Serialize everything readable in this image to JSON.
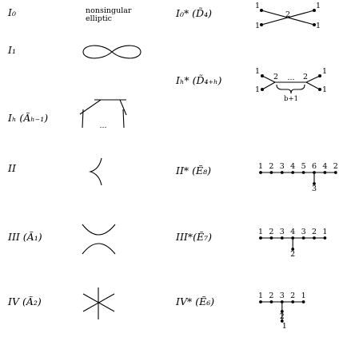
{
  "left": {
    "i0": "I₀",
    "i1": "I₁",
    "ib": "Iₕ  (Ãₕ₋₁)",
    "ii": "II",
    "iii": "III (Ã₁)",
    "iv": "IV  (Ã₂)"
  },
  "nonsingular": {
    "line1": "nonsingular",
    "line2": "elliptic"
  },
  "cycle_dots": "...",
  "right": {
    "i0s": "I₀*  (D̃₄)",
    "ibs": "Iₕ*  (D̃₄₊ₕ)",
    "iis": "II*  (Ẽ₈)",
    "iiis": "III*(Ẽ₇)",
    "ivs": "IV*  (Ẽ₆)"
  },
  "d4": {
    "ends": [
      "1",
      "1",
      "1",
      "1"
    ],
    "center": "2"
  },
  "d4b": {
    "ends": [
      "1",
      "1",
      "1",
      "1"
    ],
    "left": "2",
    "right": "2",
    "dots": "...",
    "brace_label": "b+1"
  },
  "e8": {
    "chain": [
      "1",
      "2",
      "3",
      "4",
      "5",
      "6",
      "4",
      "2"
    ],
    "branch": [
      "3"
    ]
  },
  "e7": {
    "chain": [
      "1",
      "2",
      "3",
      "4",
      "3",
      "2",
      "1"
    ],
    "branch": [
      "2"
    ]
  },
  "e6": {
    "chain": [
      "1",
      "2",
      "3",
      "2",
      "1"
    ],
    "branch": [
      "2",
      "1"
    ]
  }
}
